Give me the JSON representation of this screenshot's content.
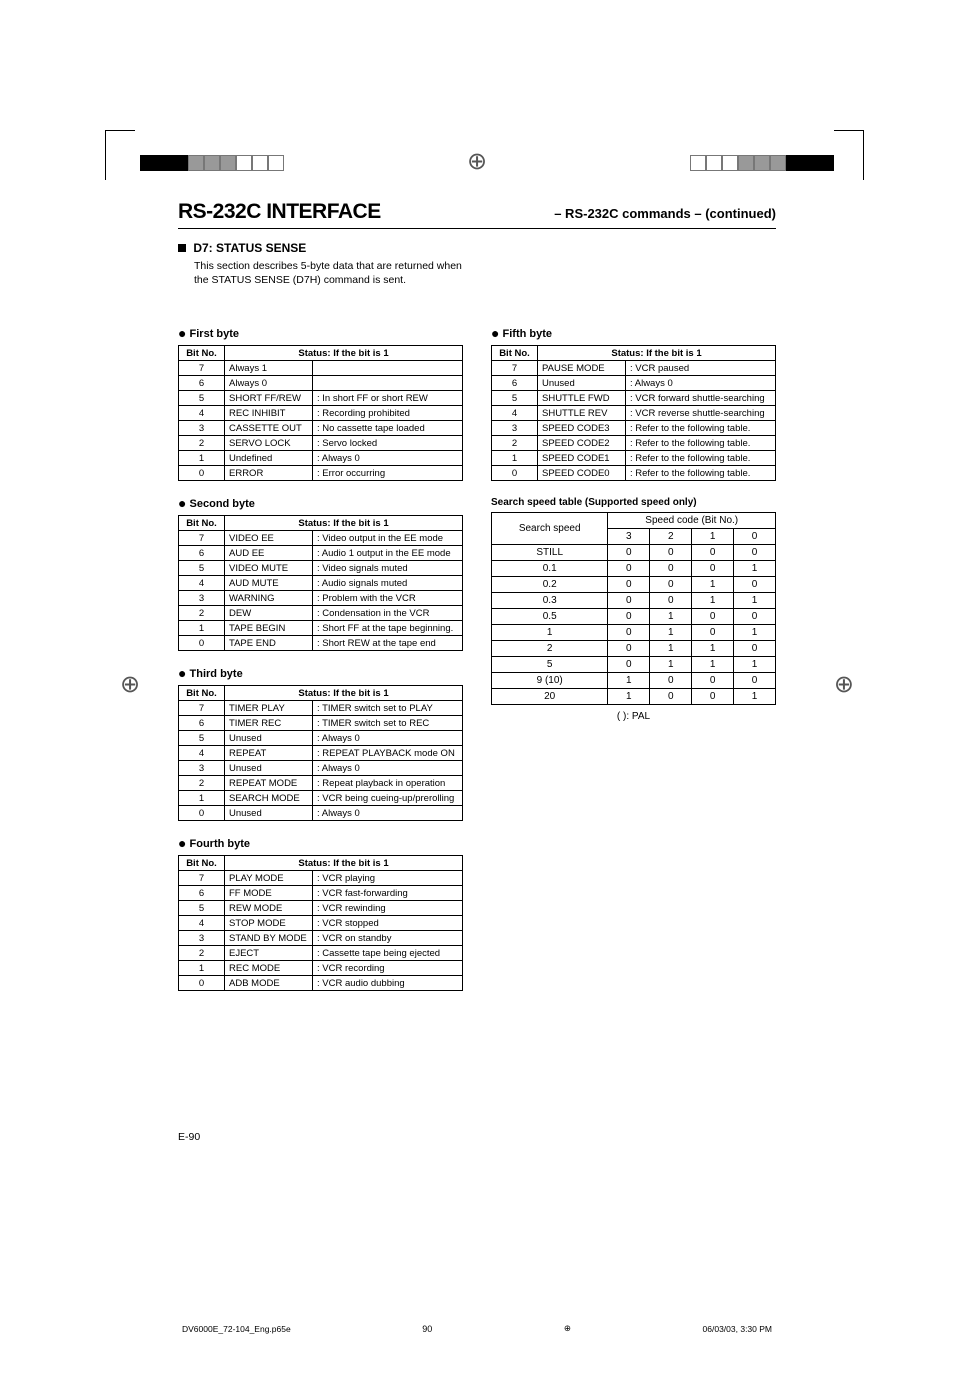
{
  "heading": {
    "title": "RS-232C INTERFACE",
    "subtitle": "– RS-232C commands – (continued)"
  },
  "section": {
    "title": "D7: STATUS SENSE",
    "intro": "This section describes 5-byte data that are returned when the STATUS SENSE (D7H) command is sent."
  },
  "tableHeader": {
    "bit": "Bit No.",
    "status": "Status: If the bit is 1"
  },
  "bytes": {
    "first": {
      "title": "First byte",
      "rows": [
        {
          "bit": "7",
          "name": "Always 1",
          "desc": ""
        },
        {
          "bit": "6",
          "name": "Always 0",
          "desc": ""
        },
        {
          "bit": "5",
          "name": "SHORT FF/REW",
          "desc": ": In short FF or short REW"
        },
        {
          "bit": "4",
          "name": "REC INHIBIT",
          "desc": ": Recording prohibited"
        },
        {
          "bit": "3",
          "name": "CASSETTE OUT",
          "desc": ": No cassette tape loaded"
        },
        {
          "bit": "2",
          "name": "SERVO LOCK",
          "desc": ": Servo locked"
        },
        {
          "bit": "1",
          "name": "Undefined",
          "desc": ": Always 0"
        },
        {
          "bit": "0",
          "name": "ERROR",
          "desc": ": Error occurring"
        }
      ]
    },
    "second": {
      "title": "Second byte",
      "rows": [
        {
          "bit": "7",
          "name": "VIDEO EE",
          "desc": ": Video output in the EE mode"
        },
        {
          "bit": "6",
          "name": "AUD EE",
          "desc": ": Audio 1 output in the EE mode"
        },
        {
          "bit": "5",
          "name": "VIDEO MUTE",
          "desc": ": Video signals muted"
        },
        {
          "bit": "4",
          "name": "AUD MUTE",
          "desc": ": Audio signals muted"
        },
        {
          "bit": "3",
          "name": "WARNING",
          "desc": ": Problem with the VCR"
        },
        {
          "bit": "2",
          "name": "DEW",
          "desc": ": Condensation in the VCR"
        },
        {
          "bit": "1",
          "name": "TAPE BEGIN",
          "desc": ": Short FF at the tape beginning."
        },
        {
          "bit": "0",
          "name": "TAPE END",
          "desc": ": Short REW at the tape end"
        }
      ]
    },
    "third": {
      "title": "Third byte",
      "rows": [
        {
          "bit": "7",
          "name": "TIMER PLAY",
          "desc": ": TIMER switch set to PLAY"
        },
        {
          "bit": "6",
          "name": "TIMER REC",
          "desc": ": TIMER switch set to REC"
        },
        {
          "bit": "5",
          "name": "Unused",
          "desc": ": Always 0"
        },
        {
          "bit": "4",
          "name": "REPEAT",
          "desc": ": REPEAT PLAYBACK mode ON"
        },
        {
          "bit": "3",
          "name": "Unused",
          "desc": ": Always 0"
        },
        {
          "bit": "2",
          "name": "REPEAT MODE",
          "desc": ": Repeat playback in operation"
        },
        {
          "bit": "1",
          "name": "SEARCH MODE",
          "desc": ": VCR being cueing-up/prerolling"
        },
        {
          "bit": "0",
          "name": "Unused",
          "desc": ": Always 0"
        }
      ]
    },
    "fourth": {
      "title": "Fourth byte",
      "rows": [
        {
          "bit": "7",
          "name": "PLAY MODE",
          "desc": ": VCR playing"
        },
        {
          "bit": "6",
          "name": "FF MODE",
          "desc": ": VCR fast-forwarding"
        },
        {
          "bit": "5",
          "name": "REW MODE",
          "desc": ": VCR rewinding"
        },
        {
          "bit": "4",
          "name": "STOP MODE",
          "desc": ": VCR stopped"
        },
        {
          "bit": "3",
          "name": "STAND BY MODE",
          "desc": ": VCR on standby"
        },
        {
          "bit": "2",
          "name": "EJECT",
          "desc": ": Cassette tape being ejected"
        },
        {
          "bit": "1",
          "name": "REC MODE",
          "desc": ": VCR recording"
        },
        {
          "bit": "0",
          "name": "ADB MODE",
          "desc": ": VCR audio dubbing"
        }
      ]
    },
    "fifth": {
      "title": "Fifth byte",
      "rows": [
        {
          "bit": "7",
          "name": "PAUSE MODE",
          "desc": ": VCR paused"
        },
        {
          "bit": "6",
          "name": "Unused",
          "desc": ": Always 0"
        },
        {
          "bit": "5",
          "name": "SHUTTLE FWD",
          "desc": ": VCR forward shuttle-searching"
        },
        {
          "bit": "4",
          "name": "SHUTTLE REV",
          "desc": ": VCR reverse shuttle-searching"
        },
        {
          "bit": "3",
          "name": "SPEED CODE3",
          "desc": ": Refer to the following table."
        },
        {
          "bit": "2",
          "name": "SPEED CODE2",
          "desc": ": Refer to the following table."
        },
        {
          "bit": "1",
          "name": "SPEED CODE1",
          "desc": ": Refer to the following table."
        },
        {
          "bit": "0",
          "name": "SPEED CODE0",
          "desc": ": Refer to the following table."
        }
      ]
    }
  },
  "speedTable": {
    "caption": "Search speed table (Supported speed only)",
    "header": {
      "search": "Search speed",
      "code": "Speed code (Bit No.)",
      "b3": "3",
      "b2": "2",
      "b1": "1",
      "b0": "0"
    },
    "rows": [
      {
        "speed": "STILL",
        "b3": "0",
        "b2": "0",
        "b1": "0",
        "b0": "0"
      },
      {
        "speed": "0.1",
        "b3": "0",
        "b2": "0",
        "b1": "0",
        "b0": "1"
      },
      {
        "speed": "0.2",
        "b3": "0",
        "b2": "0",
        "b1": "1",
        "b0": "0"
      },
      {
        "speed": "0.3",
        "b3": "0",
        "b2": "0",
        "b1": "1",
        "b0": "1"
      },
      {
        "speed": "0.5",
        "b3": "0",
        "b2": "1",
        "b1": "0",
        "b0": "0"
      },
      {
        "speed": "1",
        "b3": "0",
        "b2": "1",
        "b1": "0",
        "b0": "1"
      },
      {
        "speed": "2",
        "b3": "0",
        "b2": "1",
        "b1": "1",
        "b0": "0"
      },
      {
        "speed": "5",
        "b3": "0",
        "b2": "1",
        "b1": "1",
        "b0": "1"
      },
      {
        "speed": "9 (10)",
        "b3": "1",
        "b2": "0",
        "b1": "0",
        "b0": "0"
      },
      {
        "speed": "20",
        "b3": "1",
        "b2": "0",
        "b1": "0",
        "b0": "1"
      }
    ],
    "note": "(  ): PAL"
  },
  "pageNo": "E-90",
  "footer": {
    "file": "DV6000E_72-104_Eng.p65e",
    "page": "90",
    "date": "06/03/03, 3:30 PM"
  }
}
